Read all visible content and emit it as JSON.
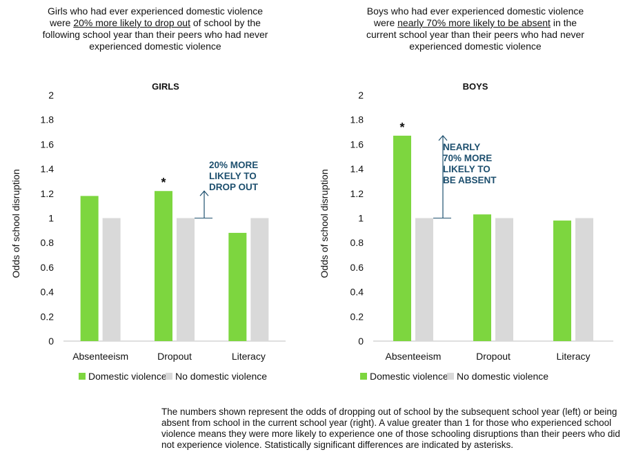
{
  "chart_data": [
    {
      "type": "bar",
      "title": "GIRLS",
      "subtitle_parts": [
        "Girls who had ever experienced domestic violence were ",
        "20% more likely to drop out",
        " of school by the following school year than their peers who had never experienced domestic violence"
      ],
      "categories": [
        "Absenteeism",
        "Dropout",
        "Literacy"
      ],
      "series": [
        {
          "name": "Domestic violence",
          "values": [
            1.18,
            1.22,
            0.88
          ]
        },
        {
          "name": "No domestic violence",
          "values": [
            1.0,
            1.0,
            1.0
          ]
        }
      ],
      "significant": [
        false,
        true,
        false
      ],
      "annotation": {
        "lines": [
          "20% MORE",
          "LIKELY TO",
          "DROP OUT"
        ],
        "category": "Dropout"
      },
      "ylabel": "Odds of school disruption",
      "ylim": [
        0,
        2
      ],
      "yticks": [
        0,
        0.2,
        0.4,
        0.6,
        0.8,
        1,
        1.2,
        1.4,
        1.6,
        1.8,
        2
      ],
      "ytick_labels": [
        "0",
        "0.2",
        "0.4",
        "0.6",
        "0.8",
        "1",
        "1.2",
        "1.4",
        "1.6",
        "1.8",
        "2"
      ],
      "grid": false,
      "legend": "bottom-left"
    },
    {
      "type": "bar",
      "title": "BOYS",
      "subtitle_parts": [
        "Boys who had ever experienced domestic violence were ",
        "nearly 70% more likely to be absent",
        " in the current school year than their peers who had never experienced domestic violence"
      ],
      "categories": [
        "Absenteeism",
        "Dropout",
        "Literacy"
      ],
      "series": [
        {
          "name": "Domestic violence",
          "values": [
            1.67,
            1.03,
            0.98
          ]
        },
        {
          "name": "No domestic violence",
          "values": [
            1.0,
            1.0,
            1.0
          ]
        }
      ],
      "significant": [
        true,
        false,
        false
      ],
      "annotation": {
        "lines": [
          "NEARLY",
          "70% MORE",
          "LIKELY TO",
          "BE ABSENT"
        ],
        "category": "Absenteeism"
      },
      "ylabel": "Odds of school disruption",
      "ylim": [
        0,
        2
      ],
      "yticks": [
        0,
        0.2,
        0.4,
        0.6,
        0.8,
        1,
        1.2,
        1.4,
        1.6,
        1.8,
        2
      ],
      "ytick_labels": [
        "0",
        "0.2",
        "0.4",
        "0.6",
        "0.8",
        "1",
        "1.2",
        "1.4",
        "1.6",
        "1.8",
        "2"
      ],
      "grid": false,
      "legend": "bottom-left"
    }
  ],
  "colors": {
    "domestic": "#7dd63f",
    "no_domestic": "#d9d9d9",
    "annotation": "#1d4f6e",
    "axis": "#bfbfbf",
    "text": "#111111"
  },
  "significance_marker": "*",
  "note": "The numbers shown represent the odds of dropping out of school by the subsequent school year (left) or being absent from school in the current school year (right). A value greater than 1 for those who experienced school violence means they were more likely to experience one of those schooling disruptions than their peers who did not experience violence. Statistically significant differences are indicated by asterisks."
}
